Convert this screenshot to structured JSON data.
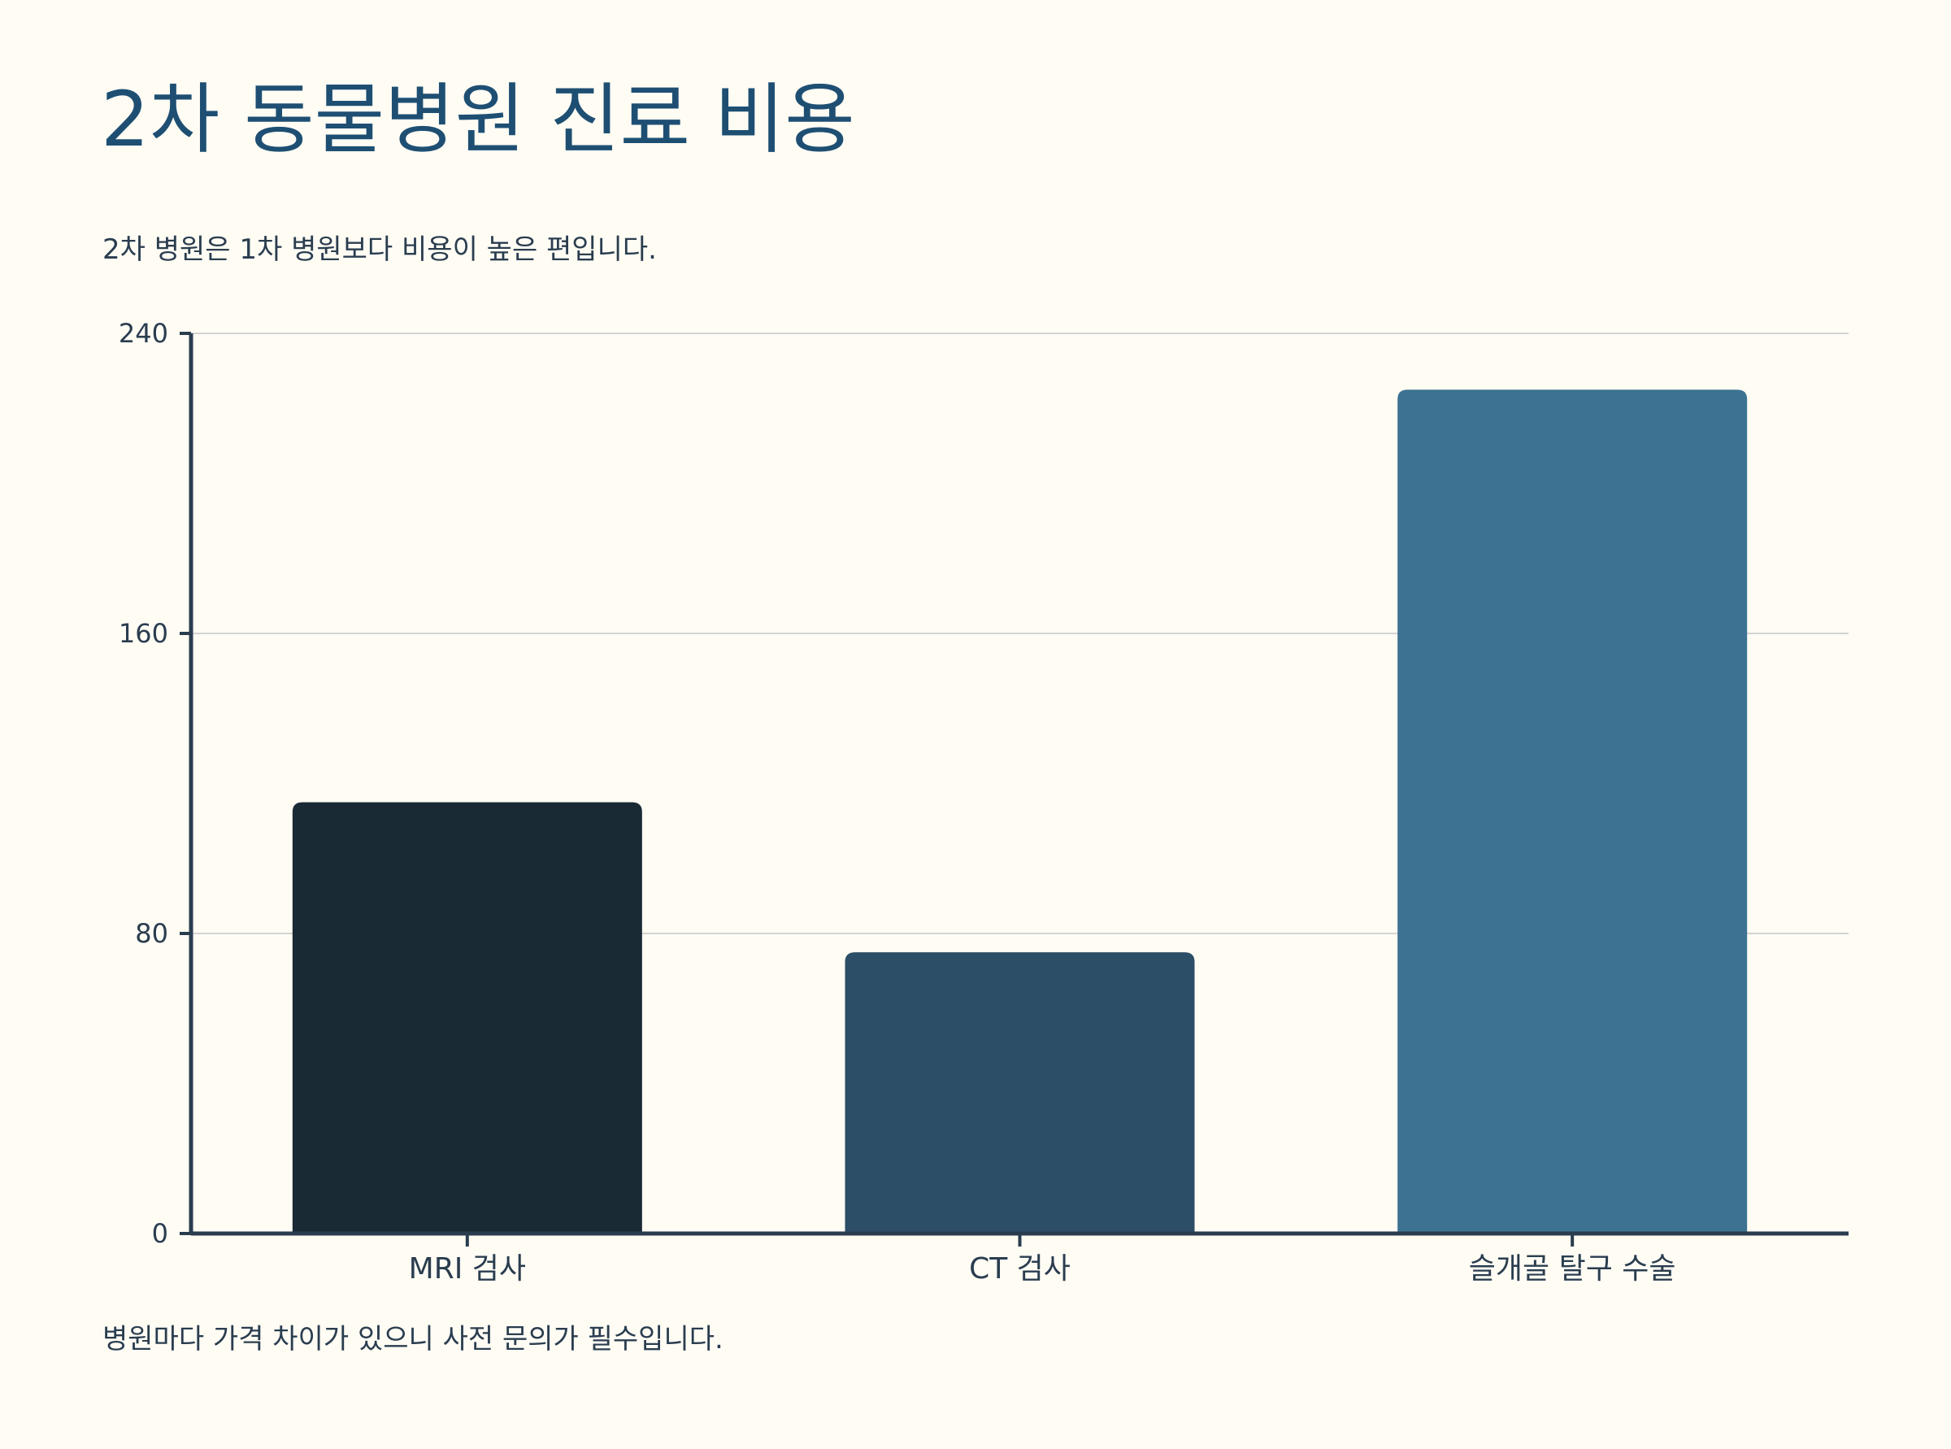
{
  "chart_data": {
    "type": "bar",
    "title": "2차 동물병원 진료 비용",
    "subtitle": "2차 병원은 1차 병원보다 비용이 높은 편입니다.",
    "footnote": "병원마다 가격 차이가 있으니 사전 문의가 필수입니다.",
    "categories": [
      "MRI 검사",
      "CT 검사",
      "슬개골 탈구 수술"
    ],
    "values": [
      115,
      75,
      225
    ],
    "colors": [
      "#192a35",
      "#2c4e66",
      "#3d7292"
    ],
    "ylim": [
      0,
      240
    ],
    "yticks": [
      0,
      80,
      160,
      240
    ],
    "xlabel": "",
    "ylabel": "",
    "grid": true
  },
  "colors": {
    "background": "#fffcf4",
    "title": "#1e4f73",
    "text": "#2a3d4f",
    "axis": "#2a3d4f",
    "grid": "#d3d3d3"
  }
}
